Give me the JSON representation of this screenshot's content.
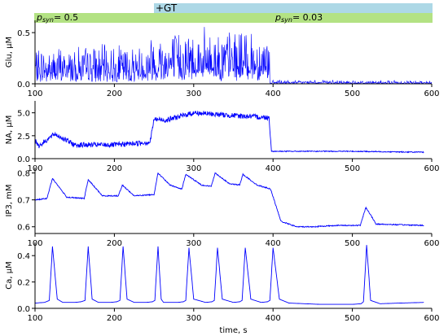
{
  "header": {
    "gt_label": "+GT",
    "psyn_left": {
      "main": "p",
      "sub": "syn",
      "value": "= 0.5"
    },
    "psyn_right": {
      "main": "p",
      "sub": "syn",
      "value": "= 0.03"
    },
    "colors": {
      "gt_bar": "#add8e6",
      "psyn_bar": "#b3e283"
    }
  },
  "colors": {
    "line": "#0000ff",
    "axis": "#000000"
  },
  "chart_data": [
    {
      "type": "line",
      "ylabel": "Glu, μM",
      "xlim": [
        100,
        600
      ],
      "ylim": [
        0,
        0.62
      ],
      "yticks": [
        0.0,
        0.5
      ],
      "ytick_labels": [
        "0.0",
        "0.5"
      ],
      "xticks": [
        100,
        200,
        300,
        400,
        500,
        600
      ],
      "xtick_labels": [
        "100",
        "200",
        "300",
        "400",
        "500",
        "600"
      ],
      "series": [
        {
          "x": [
            100,
            150,
            200,
            240,
            245,
            300,
            350,
            395,
            397,
            450,
            500,
            600
          ],
          "y": [
            0.19,
            0.2,
            0.2,
            0.21,
            0.28,
            0.3,
            0.29,
            0.28,
            0.02,
            0.02,
            0.02,
            0.02
          ]
        }
      ]
    },
    {
      "type": "line",
      "ylabel": "NA, μM",
      "xlim": [
        100,
        600
      ],
      "ylim": [
        0,
        6.3
      ],
      "yticks": [
        0.0,
        2.5,
        5.0
      ],
      "ytick_labels": [
        "0.0",
        "2.5",
        "5.0"
      ],
      "xticks": [
        100,
        200,
        300,
        400,
        500,
        600
      ],
      "xtick_labels": [
        "100",
        "200",
        "300",
        "400",
        "500",
        "600"
      ],
      "series": [
        {
          "x": [
            100,
            105,
            125,
            150,
            200,
            245,
            250,
            265,
            300,
            350,
            390,
            395,
            398,
            450,
            500,
            590
          ],
          "y": [
            2.0,
            1.4,
            2.7,
            1.5,
            1.5,
            1.8,
            4.3,
            4.2,
            5.0,
            4.7,
            4.5,
            4.5,
            0.8,
            0.8,
            0.8,
            0.7
          ]
        }
      ]
    },
    {
      "type": "line",
      "ylabel": "IP3, mM",
      "xlim": [
        100,
        600
      ],
      "ylim": [
        0.575,
        0.82
      ],
      "yticks": [
        0.6,
        0.7,
        0.8
      ],
      "ytick_labels": [
        "0.6",
        "0.7",
        "0.8"
      ],
      "xticks": [
        100,
        200,
        300,
        400,
        500,
        600
      ],
      "xtick_labels": [
        "100",
        "200",
        "300",
        "400",
        "500",
        "600"
      ],
      "series": [
        {
          "x": [
            100,
            115,
            122,
            140,
            162,
            167,
            185,
            205,
            210,
            225,
            250,
            255,
            270,
            285,
            290,
            310,
            322,
            327,
            345,
            358,
            362,
            380,
            392,
            397,
            410,
            430,
            450,
            480,
            510,
            517,
            530,
            590
          ],
          "y": [
            0.7,
            0.705,
            0.78,
            0.71,
            0.705,
            0.775,
            0.715,
            0.715,
            0.755,
            0.715,
            0.72,
            0.8,
            0.755,
            0.74,
            0.795,
            0.755,
            0.75,
            0.8,
            0.76,
            0.755,
            0.795,
            0.755,
            0.745,
            0.74,
            0.62,
            0.6,
            0.6,
            0.605,
            0.605,
            0.672,
            0.61,
            0.605
          ]
        }
      ]
    },
    {
      "type": "line",
      "ylabel": "Ca, μM",
      "xlim": [
        100,
        600
      ],
      "ylim": [
        0,
        0.5
      ],
      "yticks": [
        0.0,
        0.2,
        0.4
      ],
      "ytick_labels": [
        "0.0",
        "0.2",
        "0.4"
      ],
      "xticks": [
        100,
        200,
        300,
        400,
        500,
        600
      ],
      "xtick_labels": [
        "100",
        "200",
        "300",
        "400",
        "500",
        "600"
      ],
      "xlabel": "time, s",
      "series": [
        {
          "x": [
            100,
            112,
            118,
            122,
            128,
            135,
            150,
            158,
            163,
            167,
            172,
            180,
            195,
            203,
            207,
            211,
            216,
            225,
            240,
            248,
            251,
            255,
            259,
            262,
            280,
            287,
            290,
            294,
            300,
            315,
            323,
            326,
            330,
            336,
            350,
            358,
            361,
            365,
            372,
            385,
            393,
            396,
            400,
            408,
            420,
            460,
            500,
            511,
            514,
            518,
            523,
            535,
            560,
            590
          ],
          "y": [
            0.04,
            0.045,
            0.06,
            0.47,
            0.07,
            0.045,
            0.045,
            0.05,
            0.06,
            0.47,
            0.07,
            0.045,
            0.045,
            0.05,
            0.06,
            0.47,
            0.07,
            0.045,
            0.045,
            0.05,
            0.06,
            0.47,
            0.07,
            0.045,
            0.045,
            0.05,
            0.06,
            0.46,
            0.07,
            0.045,
            0.05,
            0.06,
            0.46,
            0.07,
            0.045,
            0.05,
            0.06,
            0.46,
            0.07,
            0.045,
            0.05,
            0.06,
            0.46,
            0.07,
            0.04,
            0.03,
            0.03,
            0.035,
            0.05,
            0.48,
            0.06,
            0.035,
            0.04,
            0.045
          ]
        }
      ]
    }
  ]
}
